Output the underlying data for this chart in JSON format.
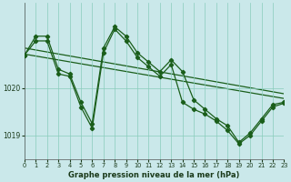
{
  "background_color": "#cae8ea",
  "grid_color": "#88ccbb",
  "line_color": "#1a5e1a",
  "marker_color": "#1a5e1a",
  "title": "Graphe pression niveau de la mer (hPa)",
  "xlim": [
    0,
    23
  ],
  "ylim": [
    1018.5,
    1021.8
  ],
  "yticks": [
    1019,
    1020
  ],
  "xticks": [
    0,
    1,
    2,
    3,
    4,
    5,
    6,
    7,
    8,
    9,
    10,
    11,
    12,
    13,
    14,
    15,
    16,
    17,
    18,
    19,
    20,
    21,
    22,
    23
  ],
  "series_main_x": [
    0,
    1,
    2,
    3,
    4,
    5,
    6,
    7,
    8,
    9,
    10,
    11,
    12,
    13,
    14,
    15,
    16,
    17,
    18,
    19,
    20,
    21,
    22,
    23
  ],
  "series_main_y": [
    1020.7,
    1021.1,
    1021.1,
    1020.4,
    1020.3,
    1019.7,
    1019.25,
    1020.85,
    1021.3,
    1021.1,
    1020.75,
    1020.55,
    1020.35,
    1020.6,
    1020.35,
    1019.75,
    1019.55,
    1019.35,
    1019.2,
    1018.85,
    1019.05,
    1019.35,
    1019.65,
    1019.7
  ],
  "series_secondary_y": [
    1020.7,
    1021.0,
    1021.0,
    1020.3,
    1020.25,
    1019.6,
    1019.15,
    1020.75,
    1021.25,
    1021.0,
    1020.65,
    1020.45,
    1020.25,
    1020.5,
    1019.7,
    1019.55,
    1019.45,
    1019.3,
    1019.1,
    1018.82,
    1019.0,
    1019.3,
    1019.6,
    1019.68
  ],
  "trend1_x": [
    0,
    23
  ],
  "trend1_y": [
    1020.85,
    1019.88
  ],
  "trend2_x": [
    0,
    23
  ],
  "trend2_y": [
    1020.72,
    1019.78
  ]
}
